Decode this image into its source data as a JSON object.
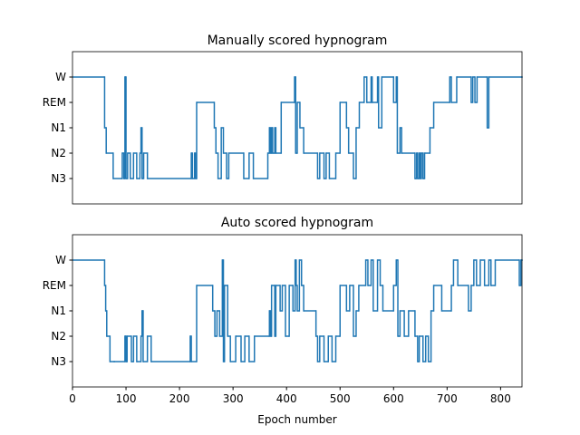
{
  "chart_data": [
    {
      "type": "line",
      "drawstyle": "steps-post",
      "title": "Manually scored hypnogram",
      "color": "#1f77b4",
      "x": [
        0,
        60,
        63,
        76,
        93,
        96,
        98,
        100,
        103,
        108,
        114,
        120,
        126,
        128,
        130,
        133,
        140,
        222,
        224,
        228,
        230,
        232,
        265,
        268,
        272,
        278,
        282,
        288,
        292,
        320,
        330,
        338,
        365,
        368,
        370,
        372,
        374,
        378,
        380,
        390,
        415,
        417,
        420,
        425,
        432,
        458,
        462,
        470,
        474,
        480,
        492,
        500,
        512,
        516,
        525,
        530,
        536,
        545,
        550,
        558,
        560,
        570,
        572,
        578,
        600,
        605,
        607,
        612,
        615,
        640,
        643,
        645,
        648,
        650,
        652,
        655,
        658,
        668,
        675,
        705,
        708,
        718,
        745,
        748,
        752,
        756,
        775,
        778,
        840
      ],
      "values": [
        4,
        2,
        1,
        0,
        1,
        0,
        4,
        0,
        1,
        0,
        1,
        0,
        1,
        2,
        0,
        1,
        0,
        1,
        0,
        1,
        0,
        3,
        2,
        1,
        0,
        2,
        1,
        0,
        1,
        0,
        1,
        0,
        1,
        2,
        1,
        2,
        1,
        2,
        1,
        3,
        4,
        1,
        3,
        2,
        1,
        0,
        1,
        0,
        1,
        0,
        1,
        3,
        2,
        1,
        0,
        2,
        3,
        4,
        3,
        4,
        3,
        4,
        2,
        4,
        3,
        4,
        1,
        2,
        1,
        0,
        1,
        0,
        1,
        0,
        1,
        0,
        1,
        2,
        3,
        4,
        3,
        4,
        3,
        4,
        3,
        4,
        2,
        4,
        4
      ],
      "xlim": [
        0,
        840
      ],
      "ylim": [
        -1,
        5
      ],
      "yticks": [
        {
          "value": 4,
          "label": "W"
        },
        {
          "value": 3,
          "label": "REM"
        },
        {
          "value": 2,
          "label": "N1"
        },
        {
          "value": 1,
          "label": "N2"
        },
        {
          "value": 0,
          "label": "N3"
        }
      ]
    },
    {
      "type": "line",
      "drawstyle": "steps-post",
      "title": "Auto scored hypnogram",
      "color": "#1f77b4",
      "xlabel": "Epoch number",
      "x": [
        0,
        60,
        62,
        64,
        70,
        78,
        98,
        100,
        102,
        110,
        114,
        120,
        128,
        130,
        132,
        140,
        147,
        220,
        222,
        232,
        262,
        266,
        270,
        275,
        280,
        282,
        284,
        290,
        295,
        305,
        315,
        322,
        330,
        340,
        368,
        370,
        372,
        378,
        380,
        388,
        392,
        398,
        405,
        412,
        416,
        418,
        420,
        424,
        428,
        432,
        455,
        458,
        462,
        470,
        478,
        485,
        492,
        500,
        512,
        518,
        525,
        530,
        535,
        548,
        552,
        558,
        562,
        570,
        575,
        580,
        600,
        605,
        608,
        612,
        620,
        628,
        640,
        645,
        648,
        655,
        660,
        665,
        670,
        675,
        690,
        708,
        712,
        720,
        740,
        745,
        750,
        755,
        762,
        770,
        778,
        782,
        790,
        835,
        838,
        840
      ],
      "values": [
        4,
        3,
        2,
        1,
        0,
        0,
        1,
        0,
        1,
        0,
        1,
        0,
        1,
        2,
        0,
        1,
        0,
        1,
        0,
        3,
        2,
        1,
        2,
        1,
        4,
        0,
        3,
        1,
        0,
        1,
        0,
        1,
        0,
        1,
        2,
        1,
        3,
        1,
        3,
        2,
        3,
        1,
        3,
        2,
        4,
        3,
        2,
        4,
        3,
        2,
        1,
        0,
        1,
        0,
        1,
        0,
        1,
        3,
        2,
        3,
        1,
        2,
        3,
        4,
        3,
        4,
        2,
        4,
        3,
        2,
        3,
        4,
        1,
        2,
        1,
        2,
        1,
        0,
        1,
        0,
        1,
        0,
        2,
        3,
        2,
        3,
        4,
        3,
        2,
        3,
        4,
        3,
        4,
        3,
        4,
        3,
        4,
        3,
        4,
        4
      ],
      "xlim": [
        0,
        840
      ],
      "ylim": [
        -1,
        5
      ],
      "yticks": [
        {
          "value": 4,
          "label": "W"
        },
        {
          "value": 3,
          "label": "REM"
        },
        {
          "value": 2,
          "label": "N1"
        },
        {
          "value": 1,
          "label": "N2"
        },
        {
          "value": 0,
          "label": "N3"
        }
      ],
      "xticks": [
        0,
        100,
        200,
        300,
        400,
        500,
        600,
        700,
        800
      ]
    }
  ]
}
